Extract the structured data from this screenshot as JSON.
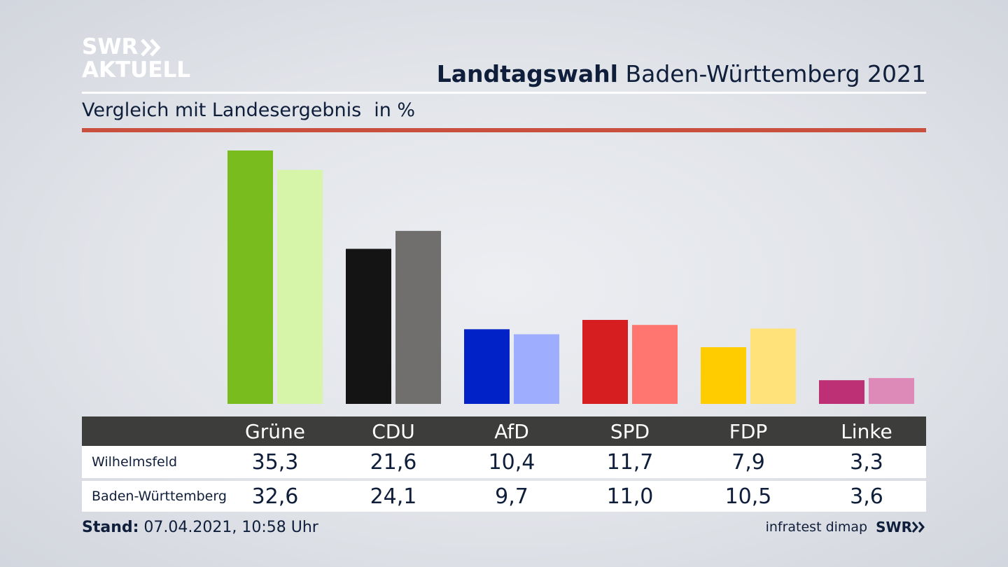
{
  "logo": {
    "line1": "SWR",
    "line2": "AKTUELL"
  },
  "header": {
    "title_bold": "Landtagswahl",
    "title_rest": "Baden-Württemberg 2021"
  },
  "subtitle": {
    "text": "Vergleich mit Landesergebnis",
    "unit": "in %"
  },
  "colors": {
    "accent_rule": "#c9503f",
    "table_header": "#3d3d3b"
  },
  "chart_data": {
    "type": "bar",
    "categories": [
      "Grüne",
      "CDU",
      "AfD",
      "SPD",
      "FDP",
      "Linke"
    ],
    "series": [
      {
        "name": "Wilhelmsfeld",
        "values": [
          35.3,
          21.6,
          10.4,
          11.7,
          7.9,
          3.3
        ],
        "colors": [
          "#79bc1e",
          "#141414",
          "#0022c6",
          "#d61e20",
          "#ffcc00",
          "#bd3075"
        ]
      },
      {
        "name": "Baden-Württemberg",
        "values": [
          32.6,
          24.1,
          9.7,
          11.0,
          10.5,
          3.6
        ],
        "colors": [
          "#d6f5a8",
          "#706f6d",
          "#9fadff",
          "#ff7670",
          "#ffe27a",
          "#de8ab8"
        ]
      }
    ],
    "ylim": [
      0,
      35.3
    ],
    "grid": false,
    "legend": "table-below"
  },
  "table": {
    "headers": [
      "Grüne",
      "CDU",
      "AfD",
      "SPD",
      "FDP",
      "Linke"
    ],
    "rows": [
      {
        "label": "Wilhelmsfeld",
        "values": [
          "35,3",
          "21,6",
          "10,4",
          "11,7",
          "7,9",
          "3,3"
        ]
      },
      {
        "label": "Baden-Württemberg",
        "values": [
          "32,6",
          "24,1",
          "9,7",
          "11,0",
          "10,5",
          "3,6"
        ]
      }
    ]
  },
  "footer": {
    "stand_label": "Stand:",
    "stand_value": "07.04.2021, 10:58 Uhr",
    "source": "infratest dimap",
    "brand": "SWR"
  }
}
